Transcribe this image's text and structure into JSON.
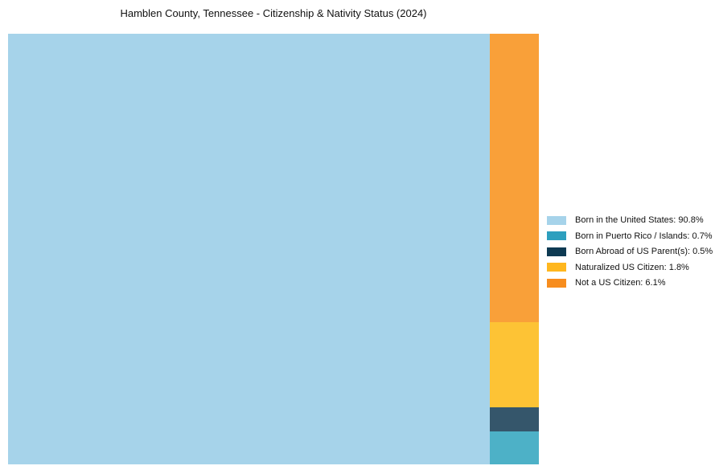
{
  "title": "Hamblen County, Tennessee - Citizenship & Nativity Status (2024)",
  "chart_data": {
    "type": "treemap",
    "title": "Hamblen County, Tennessee - Citizenship & Nativity Status (2024)",
    "unit": "%",
    "total": 100,
    "legend_position": "right",
    "layout": "largest segment fills left side full-height; remaining segments stacked in a single right column, ordered bottom-to-top following legend order",
    "segments": [
      {
        "label": "Born in the United States",
        "value": 90.8,
        "color": "#A6D3EA",
        "legend_color": "#A6D3EA"
      },
      {
        "label": "Born in Puerto Rico / Islands",
        "value": 0.7,
        "color": "#4DB1C7",
        "legend_color": "#2D9FBE"
      },
      {
        "label": "Born Abroad of US Parent(s)",
        "value": 0.5,
        "color": "#35566B",
        "legend_color": "#0E3A52"
      },
      {
        "label": "Naturalized US Citizen",
        "value": 1.8,
        "color": "#FDC335",
        "legend_color": "#FFB71E"
      },
      {
        "label": "Not a US Citizen",
        "value": 6.1,
        "color": "#F9A039",
        "legend_color": "#F78D1E"
      }
    ]
  }
}
